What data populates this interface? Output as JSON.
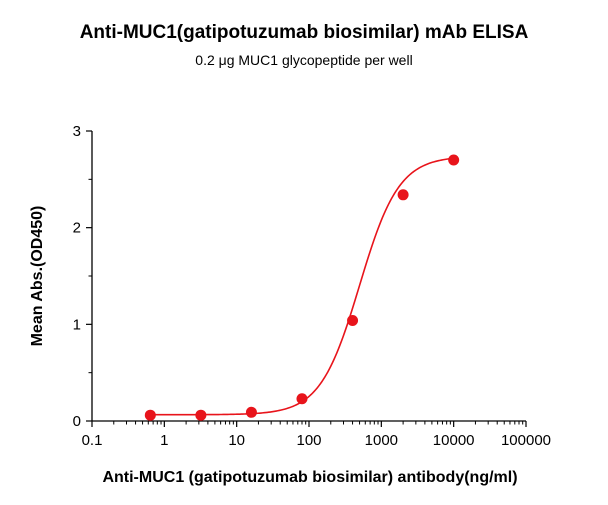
{
  "chart_data": {
    "type": "scatter",
    "title": "Anti-MUC1(gatipotuzumab biosimilar) mAb ELISA",
    "subtitle": "0.2 μg MUC1 glycopeptide per well",
    "xlabel": "Anti-MUC1 (gatipotuzumab biosimilar) antibody(ng/ml)",
    "ylabel": "Mean Abs.(OD450)",
    "xscale": "log",
    "xlim": [
      0.1,
      100000
    ],
    "ylim": [
      0,
      3
    ],
    "x_ticks": [
      "0.1",
      "1",
      "10",
      "100",
      "1000",
      "10000",
      "100000"
    ],
    "y_ticks": [
      "0",
      "1",
      "2",
      "3"
    ],
    "grid": false,
    "series": [
      {
        "color": "#e8141b",
        "x": [
          0.64,
          3.2,
          16,
          80,
          400,
          2000,
          10000
        ],
        "y": [
          0.06,
          0.06,
          0.09,
          0.23,
          1.04,
          2.34,
          2.7
        ]
      }
    ],
    "fit_curve": {
      "color": "#e8141b",
      "bottom": 0.065,
      "top": 2.74,
      "ec50": 500,
      "hill": 1.6
    }
  }
}
